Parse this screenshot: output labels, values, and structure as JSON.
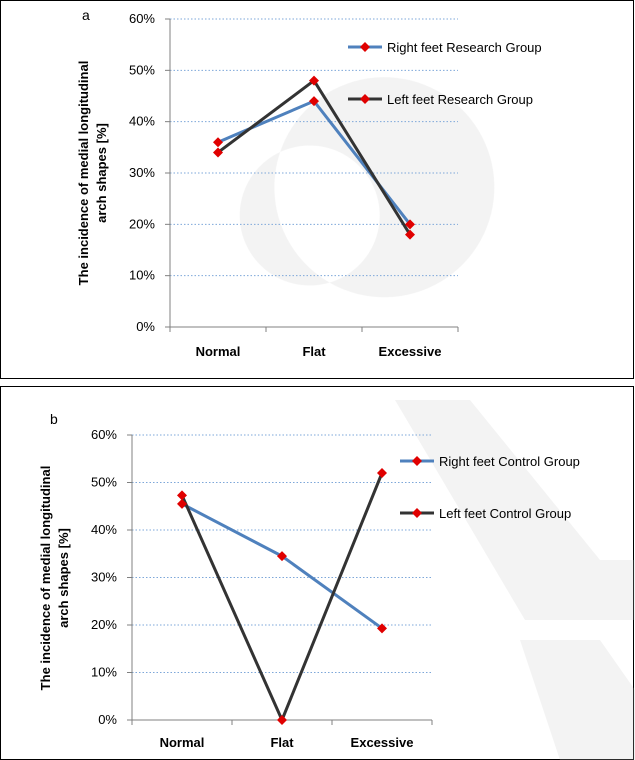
{
  "watermark": "ONLI",
  "chart_data": [
    {
      "type": "line",
      "panel_label": "a",
      "categories": [
        "Normal",
        "Flat",
        "Excessive"
      ],
      "ylabel": [
        "The incidence of medial longitudinal",
        "arch shapes [%]"
      ],
      "yticks": [
        "0%",
        "10%",
        "20%",
        "30%",
        "40%",
        "50%",
        "60%"
      ],
      "ylim": [
        0,
        60
      ],
      "grid": true,
      "legend_position": "top-right",
      "series": [
        {
          "name": "Right feet Research Group",
          "values": [
            36,
            44,
            20
          ],
          "color": "#4F81BD",
          "marker_color": "#E00000"
        },
        {
          "name": "Left feet Research Group",
          "values": [
            34,
            48,
            18
          ],
          "color": "#333333",
          "marker_color": "#E00000"
        }
      ]
    },
    {
      "type": "line",
      "panel_label": "b",
      "categories": [
        "Normal",
        "Flat",
        "Excessive"
      ],
      "ylabel": [
        "The incidence of medial longitudinal",
        "arch shapes [%]"
      ],
      "yticks": [
        "0%",
        "10%",
        "20%",
        "30%",
        "40%",
        "50%",
        "60%"
      ],
      "ylim": [
        0,
        60
      ],
      "grid": true,
      "legend_position": "top-right",
      "series": [
        {
          "name": "Right feet Control Group",
          "values": [
            45.5,
            34.5,
            19.3
          ],
          "color": "#4F81BD",
          "marker_color": "#E00000"
        },
        {
          "name": "Left feet Control Group",
          "values": [
            47.3,
            0,
            52
          ],
          "color": "#333333",
          "marker_color": "#E00000"
        }
      ]
    }
  ]
}
